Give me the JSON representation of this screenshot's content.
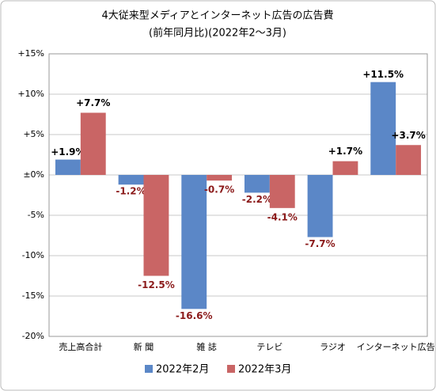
{
  "chart_data": {
    "type": "bar",
    "title": "4大従来型メディアとインターネット広告の広告費",
    "subtitle": "(前年同月比)(2022年2～3月)",
    "categories": [
      "売上高合計",
      "新 聞",
      "雑 誌",
      "テレビ",
      "ラジオ",
      "インターネット広告"
    ],
    "series": [
      {
        "name": "2022年2月",
        "color": "#5b87c7",
        "values": [
          1.9,
          -1.2,
          -16.6,
          -2.2,
          -7.7,
          11.5
        ],
        "value_labels": [
          "+1.9%",
          "-1.2%",
          "-16.6%",
          "-2.2%",
          "-7.7%",
          "+11.5%"
        ]
      },
      {
        "name": "2022年3月",
        "color": "#c96565",
        "values": [
          7.7,
          -12.5,
          -0.7,
          -4.1,
          1.7,
          3.7
        ],
        "value_labels": [
          "+7.7%",
          "-12.5%",
          "-0.7%",
          "-4.1%",
          "+1.7%",
          "+3.7%"
        ]
      }
    ],
    "ylim": [
      -20,
      15
    ],
    "yticks": [
      {
        "value": 15,
        "label": "+15%"
      },
      {
        "value": 10,
        "label": "+10%"
      },
      {
        "value": 5,
        "label": "+5%"
      },
      {
        "value": 0,
        "label": "±0%"
      },
      {
        "value": -5,
        "label": "-5%"
      },
      {
        "value": -10,
        "label": "-10%"
      },
      {
        "value": -15,
        "label": "-15%"
      },
      {
        "value": -20,
        "label": "-20%"
      }
    ],
    "grid": true
  }
}
